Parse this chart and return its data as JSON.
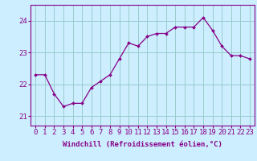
{
  "x": [
    0,
    1,
    2,
    3,
    4,
    5,
    6,
    7,
    8,
    9,
    10,
    11,
    12,
    13,
    14,
    15,
    16,
    17,
    18,
    19,
    20,
    21,
    22,
    23
  ],
  "y": [
    22.3,
    22.3,
    21.7,
    21.3,
    21.4,
    21.4,
    21.9,
    22.1,
    22.3,
    22.8,
    23.3,
    23.2,
    23.5,
    23.6,
    23.6,
    23.8,
    23.8,
    23.8,
    24.1,
    23.7,
    23.2,
    22.9,
    22.9,
    22.8
  ],
  "line_color": "#880088",
  "marker_color": "#880088",
  "bg_color": "#cceeff",
  "grid_color": "#99cccc",
  "axis_color": "#880088",
  "xlabel": "Windchill (Refroidissement éolien,°C)",
  "ylim": [
    20.7,
    24.5
  ],
  "xlim": [
    -0.5,
    23.5
  ],
  "yticks": [
    21,
    22,
    23,
    24
  ],
  "xticks": [
    0,
    1,
    2,
    3,
    4,
    5,
    6,
    7,
    8,
    9,
    10,
    11,
    12,
    13,
    14,
    15,
    16,
    17,
    18,
    19,
    20,
    21,
    22,
    23
  ],
  "font_size_xlabel": 6.5,
  "font_size_ticks": 6.5
}
